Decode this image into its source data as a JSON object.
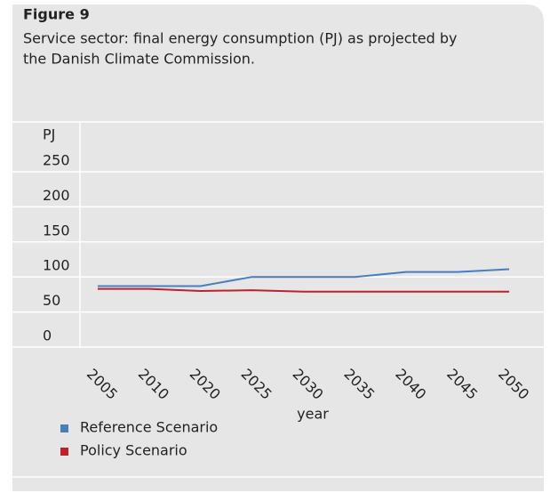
{
  "chart_data": {
    "type": "line",
    "figure_label": "Figure 9",
    "title": [
      "Service sector: final energy consumption (PJ) as projected by",
      "the Danish Climate Commission."
    ],
    "y_label": "PJ",
    "x_label": "year",
    "categories": [
      "2005",
      "2010",
      "2020",
      "2025",
      "2030",
      "2035",
      "2040",
      "2045",
      "2050"
    ],
    "series": [
      {
        "name": "Reference Scenario",
        "color": "#4a7ebb",
        "values": [
          87,
          87,
          87,
          100,
          100,
          100,
          107,
          107,
          111
        ]
      },
      {
        "name": "Policy Scenario",
        "color": "#c0202a",
        "values": [
          83,
          83,
          80,
          81,
          79,
          79,
          79,
          79,
          79
        ]
      }
    ],
    "ylim": [
      0,
      250
    ],
    "yticks": [
      0,
      50,
      100,
      150,
      200,
      250
    ],
    "grid": true
  }
}
